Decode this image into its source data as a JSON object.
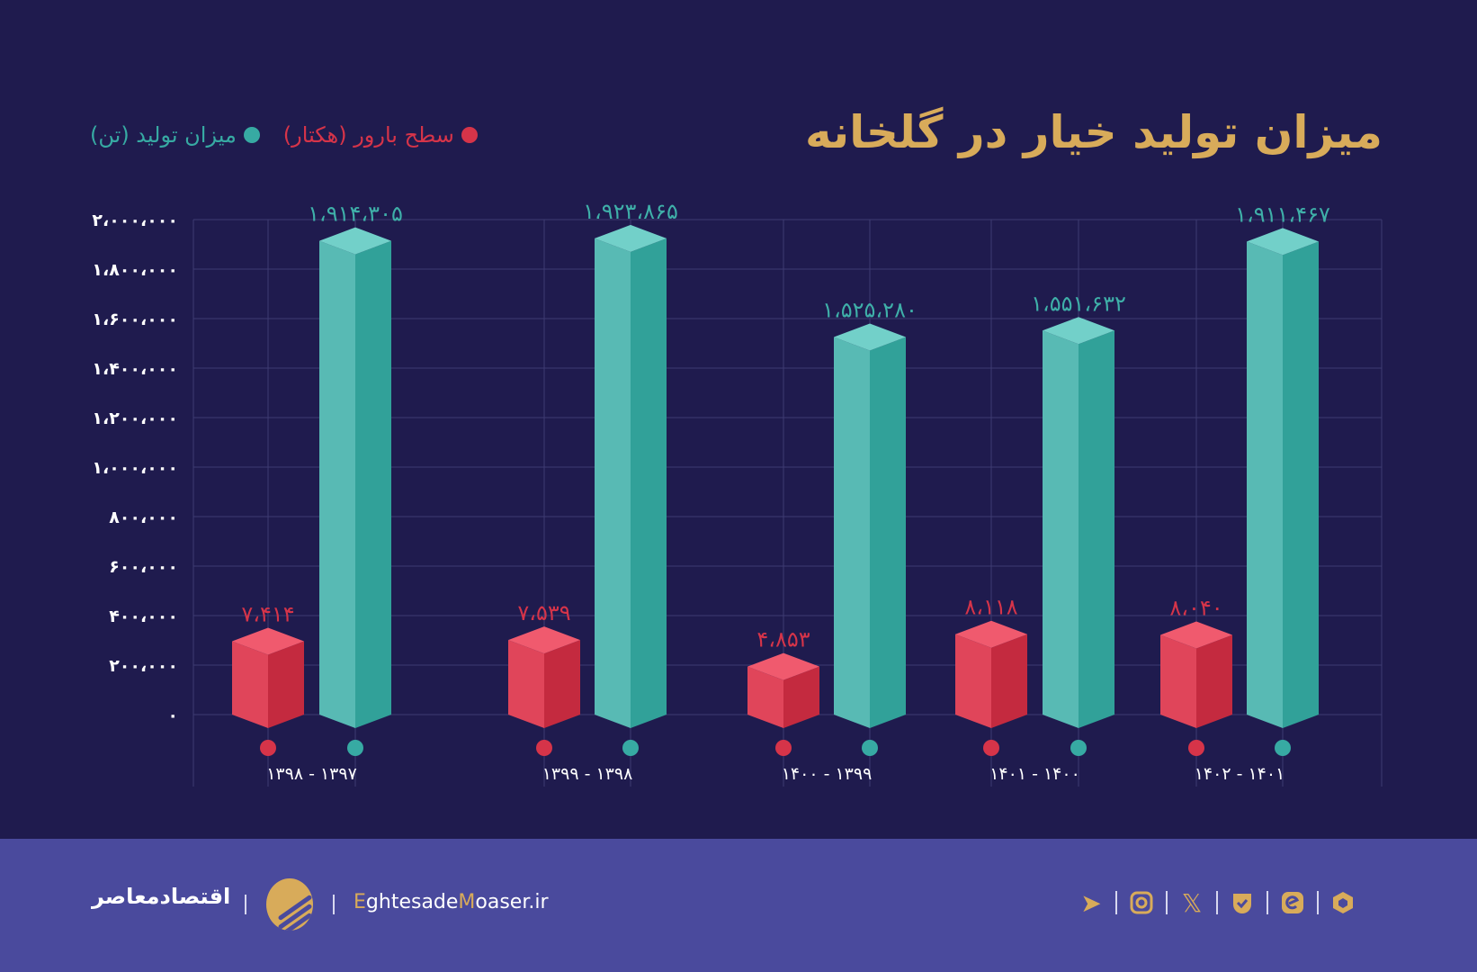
{
  "title": "میزان تولید خیار در گلخانه",
  "legend": [
    {
      "label": "میزان تولید (تن)",
      "color": "#37aaa3"
    },
    {
      "label": "سطح بارور (هکتار)",
      "color": "#d63449"
    }
  ],
  "chart_data": {
    "type": "bar",
    "title": "میزان تولید خیار در گلخانه",
    "categories": [
      "۱۳۹۷ - ۱۳۹۸",
      "۱۳۹۸ - ۱۳۹۹",
      "۱۳۹۹ - ۱۴۰۰",
      "۱۴۰۰ - ۱۴۰۱",
      "۱۴۰۱ - ۱۴۰۲"
    ],
    "series": [
      {
        "name": "میزان تولید (تن)",
        "color": "#37aaa3",
        "values": [
          1914305,
          1923865,
          1525280,
          1551632,
          1911467
        ],
        "labels": [
          "۱،۹۱۴،۳۰۵",
          "۱،۹۲۳،۸۶۵",
          "۱،۵۲۵،۲۸۰",
          "۱،۵۵۱،۶۳۲",
          "۱،۹۱۱،۴۶۷"
        ]
      },
      {
        "name": "سطح بارور (هکتار)",
        "color": "#d63449",
        "values": [
          7414,
          7539,
          4853,
          8118,
          8040
        ],
        "labels": [
          "۷،۴۱۴",
          "۷،۵۳۹",
          "۴،۸۵۳",
          "۸،۱۱۸",
          "۸،۰۴۰"
        ]
      }
    ],
    "ylim": [
      0,
      2000000
    ],
    "yticks": [
      0,
      200000,
      400000,
      600000,
      800000,
      1000000,
      1200000,
      1400000,
      1600000,
      1800000,
      2000000
    ],
    "ytick_labels": [
      "۰",
      "۲۰۰،۰۰۰",
      "۴۰۰،۰۰۰",
      "۶۰۰،۰۰۰",
      "۸۰۰،۰۰۰",
      "۱،۰۰۰،۰۰۰",
      "۱،۲۰۰،۰۰۰",
      "۱،۴۰۰،۰۰۰",
      "۱،۶۰۰،۰۰۰",
      "۱،۸۰۰،۰۰۰",
      "۲،۰۰۰،۰۰۰"
    ],
    "grid": true,
    "legend_position": "top-left"
  },
  "footer": {
    "brand_fa": "اقتصادمعاصر",
    "site_e": "E",
    "site_mid": "ghtesade",
    "site_m": "M",
    "site_end": "oaser.ir",
    "icons": [
      "telegram-icon",
      "instagram-icon",
      "x-icon",
      "bale-icon",
      "eitaa-icon",
      "rubika-icon"
    ]
  }
}
